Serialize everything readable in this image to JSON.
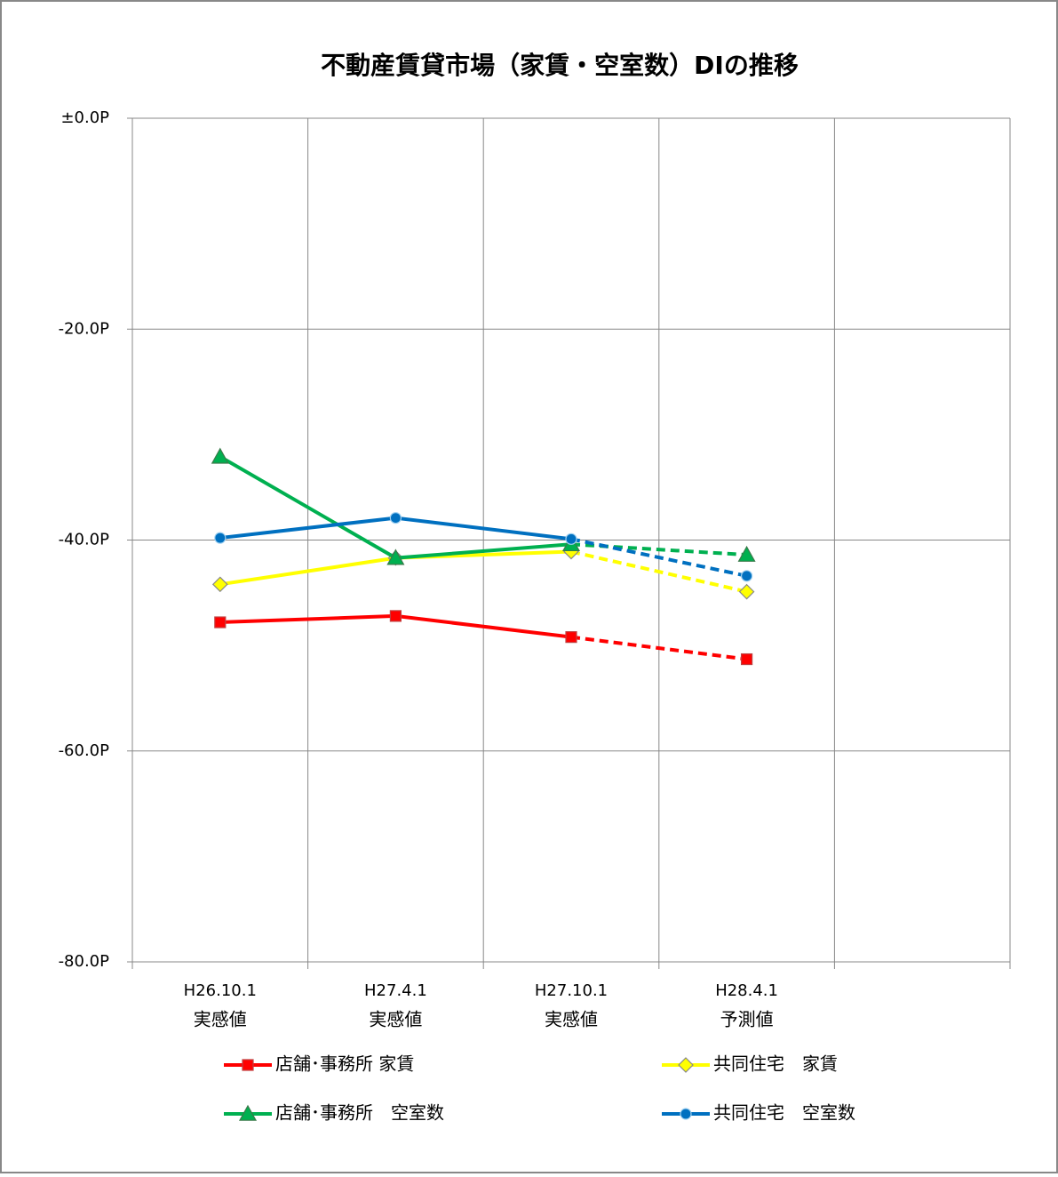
{
  "chart_data": {
    "type": "line",
    "title": "不動産賃貸市場（家賃・空室数）DIの推移",
    "categories": [
      "H26.10.1",
      "H27.4.1",
      "H27.10.1",
      "H28.4.1",
      null
    ],
    "category_sublabels": [
      "実感値",
      "実感値",
      "実感値",
      "予測値",
      null
    ],
    "dashed_from": 2,
    "series": [
      {
        "name": "店舗･事務所 家賃",
        "color": "#ff0000",
        "marker": "square",
        "values": [
          -47.8,
          -47.2,
          -49.2,
          -51.3,
          null
        ]
      },
      {
        "name": "共同住宅　家賃",
        "color": "#ffff00",
        "marker": "diamond",
        "values": [
          -44.2,
          -41.7,
          -41.1,
          -44.9,
          null
        ]
      },
      {
        "name": "店舗･事務所　空室数",
        "color": "#00b050",
        "marker": "triangle",
        "values": [
          -32.1,
          -41.7,
          -40.4,
          -41.4,
          null
        ]
      },
      {
        "name": "共同住宅　空室数",
        "color": "#0070c0",
        "marker": "circle",
        "values": [
          -39.8,
          -37.9,
          -39.9,
          -43.4,
          null
        ]
      }
    ],
    "ylim": [
      -80,
      0
    ],
    "yticks": [
      {
        "value": -80,
        "label": "-80.0P"
      },
      {
        "value": -60,
        "label": "-60.0P"
      },
      {
        "value": -40,
        "label": "-40.0P"
      },
      {
        "value": -20,
        "label": "-20.0P"
      },
      {
        "value": 0,
        "label": "±0.0P"
      }
    ],
    "grid": true
  }
}
